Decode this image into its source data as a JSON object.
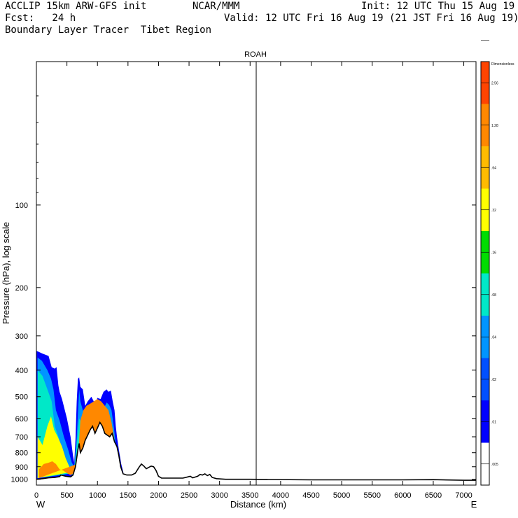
{
  "header": {
    "left1": "ACCLIP 15km ARW-GFS init",
    "center1": "NCAR/MMM",
    "right1": "Init: 12 UTC Thu 15 Aug 19",
    "left2": "Fcst:   24 h",
    "right2": "Valid: 12 UTC Fri 16 Aug 19 (21 JST Fri 16 Aug 19)",
    "left3": "Boundary Layer Tracer  Tibet Region"
  },
  "chart_data": {
    "type": "area",
    "title": "ROAH",
    "xlabel": "Distance (km)",
    "ylabel": "Pressure (hPa), log scale",
    "y_scale": "log",
    "xlim": [
      0,
      7200
    ],
    "ylim": [
      1050,
      30
    ],
    "x_ticks": [
      0,
      500,
      1000,
      1500,
      2000,
      2500,
      3000,
      3500,
      4000,
      4500,
      5000,
      5500,
      6000,
      6500,
      7000
    ],
    "y_ticks": [
      100,
      200,
      300,
      400,
      500,
      600,
      700,
      800,
      900,
      1000
    ],
    "x_end_labels": [
      "W",
      "E"
    ],
    "vertical_marker_km": 3600,
    "colorbar": {
      "levels": [
        ".005",
        ".01",
        ".02",
        ".04",
        ".08",
        ".16",
        ".32",
        ".64",
        "1.28",
        "2.56",
        "Dimensionless"
      ],
      "colors": [
        "#ffffff",
        "#0000ff",
        "#0050ff",
        "#0095ff",
        "#00e8c8",
        "#00dd00",
        "#ffff00",
        "#ffbb00",
        "#ff8800",
        "#ff4400"
      ]
    },
    "terrain": {
      "x": [
        0,
        100,
        200,
        300,
        380,
        400,
        480,
        560,
        600,
        640,
        680,
        700,
        720,
        760,
        800,
        840,
        880,
        920,
        960,
        1000,
        1040,
        1080,
        1120,
        1160,
        1200,
        1240,
        1280,
        1320,
        1350,
        1380,
        1420,
        1480,
        1560,
        1620,
        1680,
        1720,
        1760,
        1800,
        1840,
        1880,
        1920,
        1960,
        2000,
        2050,
        2200,
        2400,
        2480,
        2520,
        2560,
        2640,
        2680,
        2720,
        2760,
        2800,
        2840,
        2880,
        2950,
        3100,
        3500,
        3800,
        4500,
        5500,
        6000,
        6500,
        7000,
        7200
      ],
      "p": [
        1000,
        995,
        988,
        985,
        978,
        965,
        975,
        980,
        965,
        900,
        780,
        740,
        800,
        770,
        720,
        690,
        660,
        640,
        680,
        650,
        620,
        640,
        680,
        690,
        700,
        680,
        730,
        760,
        820,
        900,
        955,
        965,
        965,
        950,
        905,
        880,
        895,
        915,
        905,
        895,
        900,
        930,
        975,
        990,
        990,
        990,
        980,
        975,
        988,
        975,
        960,
        965,
        955,
        970,
        960,
        985,
        995,
        1000,
        1000,
        1002,
        1005,
        1005,
        1005,
        1003,
        1008,
        1008
      ]
    },
    "contours": [
      {
        "level": ".005",
        "color": "#0000ff",
        "x": [
          0,
          0,
          100,
          200,
          250,
          300,
          330,
          360,
          380,
          420,
          500,
          560,
          600,
          620,
          640,
          660,
          680,
          700,
          720,
          760,
          800,
          840,
          900,
          960,
          1000,
          1050,
          1100,
          1150,
          1180,
          1220,
          1250,
          1280,
          1300,
          1320,
          1350,
          1390,
          1430
        ],
        "y": [
          1000,
          340,
          348,
          355,
          390,
          395,
          390,
          455,
          480,
          510,
          600,
          700,
          820,
          870,
          720,
          520,
          430,
          425,
          460,
          470,
          540,
          520,
          500,
          530,
          505,
          510,
          480,
          470,
          480,
          475,
          520,
          560,
          640,
          700,
          780,
          880,
          955
        ]
      },
      {
        "level": ".02",
        "color": "#0095ff",
        "x": [
          20,
          20,
          90,
          180,
          240,
          280,
          320,
          380,
          450,
          520,
          580,
          620,
          660,
          700,
          720,
          760,
          800,
          860,
          930,
          990,
          1050,
          1100,
          1150,
          1190,
          1230,
          1270,
          1300,
          1330,
          1370
        ],
        "y": [
          990,
          360,
          370,
          400,
          430,
          470,
          560,
          610,
          700,
          780,
          870,
          900,
          700,
          470,
          520,
          560,
          580,
          565,
          570,
          575,
          540,
          555,
          525,
          535,
          560,
          650,
          740,
          820,
          900
        ]
      },
      {
        "level": ".08",
        "color": "#00e8c8",
        "x": [
          20,
          20,
          100,
          180,
          250,
          300,
          360,
          420,
          480,
          530,
          560,
          600,
          640,
          700,
          760,
          820,
          880,
          950,
          1020,
          1100,
          1160,
          1220,
          1280,
          1330
        ],
        "y": [
          990,
          400,
          420,
          470,
          520,
          640,
          700,
          780,
          900,
          950,
          960,
          960,
          840,
          600,
          640,
          640,
          650,
          640,
          620,
          620,
          640,
          680,
          790,
          900
        ]
      },
      {
        "level": ".32",
        "color": "#ffff00",
        "x": [
          20,
          20,
          100,
          180,
          240,
          290,
          350,
          420,
          480,
          540,
          600,
          660,
          700,
          760,
          820,
          900,
          980,
          1060,
          1140,
          1200,
          1260,
          1310
        ],
        "y": [
          990,
          700,
          750,
          640,
          590,
          660,
          700,
          760,
          840,
          900,
          960,
          900,
          780,
          700,
          690,
          690,
          690,
          700,
          700,
          720,
          780,
          880
        ]
      },
      {
        "level": "1.28",
        "color": "#ff8800",
        "x": [
          40,
          40,
          120,
          200,
          260,
          320,
          380,
          440,
          500,
          560,
          610,
          680,
          720,
          770,
          820,
          880,
          940,
          1000,
          1060,
          1120,
          1180,
          1230,
          1270,
          1300
        ],
        "y": [
          990,
          920,
          880,
          870,
          860,
          880,
          920,
          930,
          950,
          965,
          950,
          860,
          610,
          560,
          540,
          530,
          520,
          510,
          520,
          540,
          560,
          620,
          700,
          780
        ]
      }
    ]
  }
}
